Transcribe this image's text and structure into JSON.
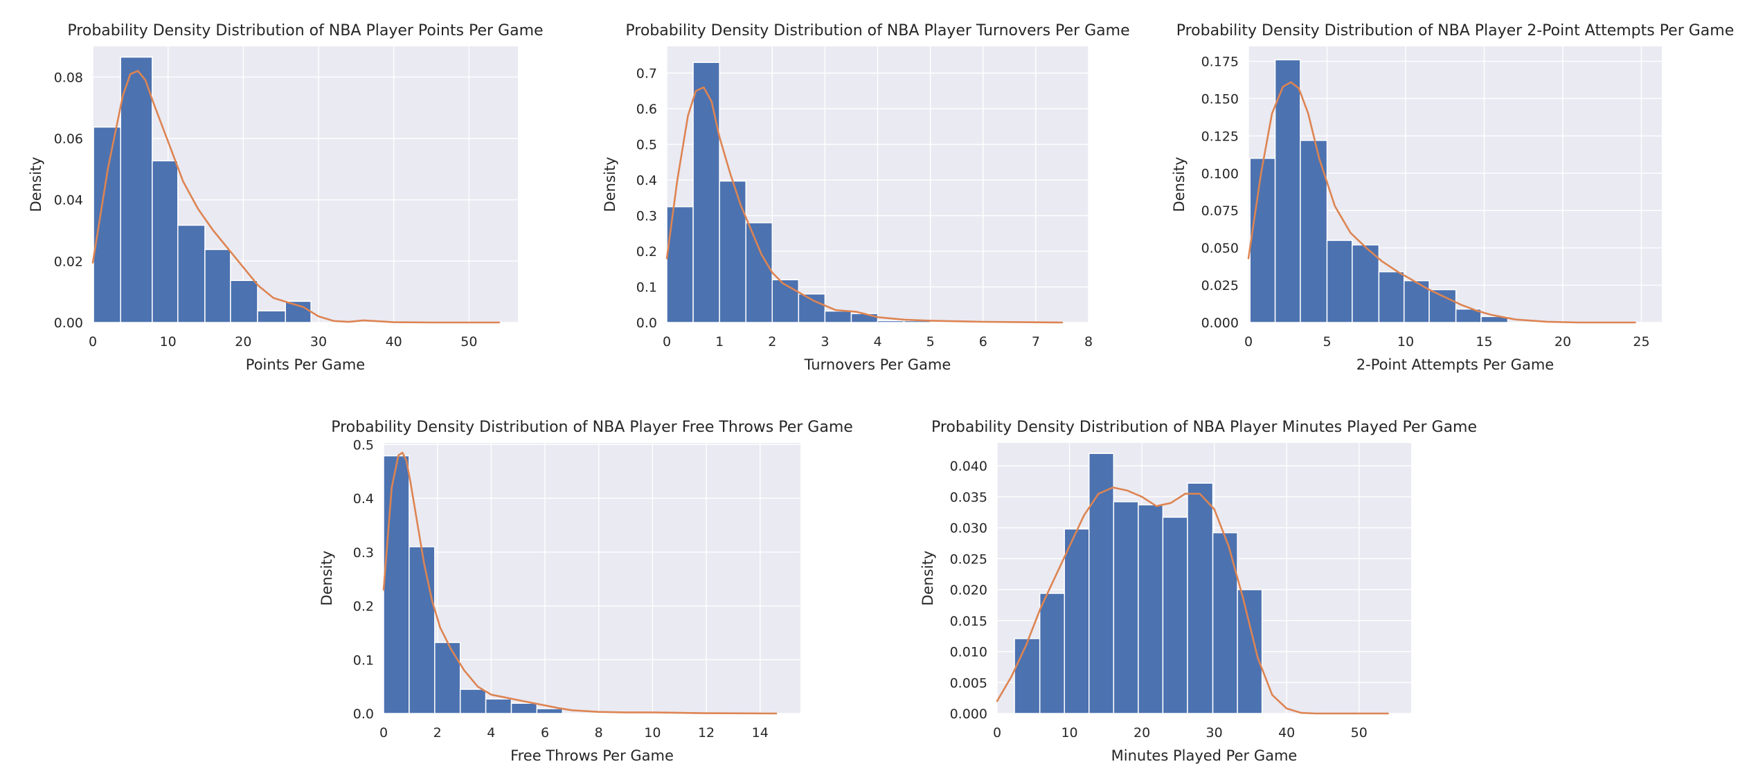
{
  "colors": {
    "background": "#eaeaf2",
    "grid": "#ffffff",
    "bar": "#4c72b0",
    "kde": "#dd8452",
    "text": "#262626"
  },
  "chart_data": [
    {
      "type": "bar",
      "title": "Probability Density Distribution of NBA Player Points Per Game",
      "xlabel": "Points Per Game",
      "ylabel": "Density",
      "xlim": [
        0,
        56.5
      ],
      "ylim": [
        0,
        0.09
      ],
      "xticks": [
        0,
        10,
        20,
        30,
        40,
        50
      ],
      "xtick_labels": [
        "0",
        "10",
        "20",
        "30",
        "40",
        "50"
      ],
      "yticks": [
        0,
        0.02,
        0.04,
        0.06,
        0.08
      ],
      "ytick_labels": [
        "0.00",
        "0.02",
        "0.04",
        "0.06",
        "0.08"
      ],
      "grid": true,
      "bins": [
        {
          "x0": 0.1,
          "x1": 3.7,
          "value": 0.0637
        },
        {
          "x0": 3.7,
          "x1": 7.9,
          "value": 0.0865
        },
        {
          "x0": 7.9,
          "x1": 11.3,
          "value": 0.0527
        },
        {
          "x0": 11.3,
          "x1": 14.9,
          "value": 0.0317
        },
        {
          "x0": 14.9,
          "x1": 18.3,
          "value": 0.0238
        },
        {
          "x0": 18.3,
          "x1": 21.9,
          "value": 0.0137
        },
        {
          "x0": 21.9,
          "x1": 25.6,
          "value": 0.0038
        },
        {
          "x0": 25.6,
          "x1": 29.0,
          "value": 0.0069
        }
      ],
      "kde": {
        "x": [
          0,
          2,
          4,
          5,
          6,
          7,
          8,
          10,
          12,
          14,
          16,
          18,
          20,
          22,
          24,
          26,
          28,
          30,
          32,
          34,
          36,
          40,
          45,
          50,
          54
        ],
        "y": [
          0.0195,
          0.05,
          0.074,
          0.081,
          0.082,
          0.079,
          0.072,
          0.059,
          0.046,
          0.037,
          0.03,
          0.024,
          0.018,
          0.012,
          0.008,
          0.0065,
          0.005,
          0.002,
          0.0005,
          0.0002,
          0.0007,
          0.0001,
          0,
          0,
          0
        ]
      }
    },
    {
      "type": "bar",
      "title": "Probability Density Distribution of NBA Player Turnovers Per Game",
      "xlabel": "Turnovers Per Game",
      "ylabel": "Density",
      "xlim": [
        0,
        8.0
      ],
      "ylim": [
        0,
        0.775
      ],
      "xticks": [
        0,
        1,
        2,
        3,
        4,
        5,
        6,
        7,
        8
      ],
      "xtick_labels": [
        "0",
        "1",
        "2",
        "3",
        "4",
        "5",
        "6",
        "7",
        "8"
      ],
      "yticks": [
        0,
        0.1,
        0.2,
        0.3,
        0.4,
        0.5,
        0.6,
        0.7
      ],
      "ytick_labels": [
        "0.0",
        "0.1",
        "0.2",
        "0.3",
        "0.4",
        "0.5",
        "0.6",
        "0.7"
      ],
      "grid": true,
      "bins": [
        {
          "x0": 0,
          "x1": 0.5,
          "value": 0.325
        },
        {
          "x0": 0.5,
          "x1": 1.0,
          "value": 0.73
        },
        {
          "x0": 1.0,
          "x1": 1.5,
          "value": 0.397
        },
        {
          "x0": 1.5,
          "x1": 2.0,
          "value": 0.28
        },
        {
          "x0": 2.0,
          "x1": 2.5,
          "value": 0.12
        },
        {
          "x0": 2.5,
          "x1": 3.0,
          "value": 0.08
        },
        {
          "x0": 3.0,
          "x1": 3.5,
          "value": 0.032
        },
        {
          "x0": 3.5,
          "x1": 4.0,
          "value": 0.025
        },
        {
          "x0": 4.0,
          "x1": 4.5,
          "value": 0.005
        },
        {
          "x0": 4.5,
          "x1": 5.0,
          "value": 0.005
        }
      ],
      "kde": {
        "x": [
          0,
          0.2,
          0.4,
          0.55,
          0.7,
          0.85,
          1.0,
          1.2,
          1.4,
          1.6,
          1.8,
          2.0,
          2.2,
          2.5,
          2.8,
          3.2,
          3.6,
          4.0,
          4.5,
          5.0,
          6.0,
          7.0,
          7.5
        ],
        "y": [
          0.18,
          0.4,
          0.58,
          0.65,
          0.66,
          0.62,
          0.52,
          0.42,
          0.33,
          0.26,
          0.19,
          0.14,
          0.11,
          0.085,
          0.06,
          0.035,
          0.03,
          0.015,
          0.008,
          0.005,
          0.002,
          0.0005,
          0
        ]
      }
    },
    {
      "type": "bar",
      "title": "Probability Density Distribution of NBA Player 2-Point Attempts Per Game",
      "xlabel": "2-Point Attempts Per Game",
      "ylabel": "Density",
      "xlim": [
        0,
        26.3
      ],
      "ylim": [
        0,
        0.185
      ],
      "xticks": [
        0,
        5,
        10,
        15,
        20,
        25
      ],
      "xtick_labels": [
        "0",
        "5",
        "10",
        "15",
        "20",
        "25"
      ],
      "yticks": [
        0,
        0.025,
        0.05,
        0.075,
        0.1,
        0.125,
        0.15,
        0.175
      ],
      "ytick_labels": [
        "0.000",
        "0.025",
        "0.050",
        "0.075",
        "0.100",
        "0.125",
        "0.150",
        "0.175"
      ],
      "grid": true,
      "bins": [
        {
          "x0": 0.1,
          "x1": 1.7,
          "value": 0.11
        },
        {
          "x0": 1.7,
          "x1": 3.3,
          "value": 0.176
        },
        {
          "x0": 3.3,
          "x1": 5.0,
          "value": 0.122
        },
        {
          "x0": 5.0,
          "x1": 6.6,
          "value": 0.055
        },
        {
          "x0": 6.6,
          "x1": 8.3,
          "value": 0.052
        },
        {
          "x0": 8.3,
          "x1": 9.9,
          "value": 0.034
        },
        {
          "x0": 9.9,
          "x1": 11.5,
          "value": 0.028
        },
        {
          "x0": 11.5,
          "x1": 13.2,
          "value": 0.022
        },
        {
          "x0": 13.2,
          "x1": 14.8,
          "value": 0.009
        },
        {
          "x0": 14.8,
          "x1": 16.5,
          "value": 0.004
        }
      ],
      "kde": {
        "x": [
          0,
          0.8,
          1.5,
          2.2,
          2.7,
          3.2,
          3.8,
          4.5,
          5.5,
          6.5,
          7.5,
          8.5,
          9.5,
          10.5,
          11.5,
          12.5,
          13.5,
          14.5,
          15.5,
          17,
          19,
          21,
          24.6
        ],
        "y": [
          0.043,
          0.1,
          0.14,
          0.158,
          0.161,
          0.157,
          0.14,
          0.11,
          0.078,
          0.06,
          0.05,
          0.041,
          0.034,
          0.028,
          0.022,
          0.017,
          0.012,
          0.008,
          0.005,
          0.002,
          0.0005,
          0,
          0
        ]
      }
    },
    {
      "type": "bar",
      "title": "Probability Density Distribution of NBA Player Free Throws Per Game",
      "xlabel": "Free Throws Per Game",
      "ylabel": "Density",
      "xlim": [
        0,
        15.5
      ],
      "ylim": [
        0,
        0.503
      ],
      "xticks": [
        0,
        2,
        4,
        6,
        8,
        10,
        12,
        14
      ],
      "xtick_labels": [
        "0",
        "2",
        "4",
        "6",
        "8",
        "10",
        "12",
        "14"
      ],
      "yticks": [
        0,
        0.1,
        0.2,
        0.3,
        0.4,
        0.5
      ],
      "ytick_labels": [
        "0.0",
        "0.1",
        "0.2",
        "0.3",
        "0.4",
        "0.5"
      ],
      "grid": true,
      "bins": [
        {
          "x0": 0,
          "x1": 0.95,
          "value": 0.479
        },
        {
          "x0": 0.95,
          "x1": 1.9,
          "value": 0.31
        },
        {
          "x0": 1.9,
          "x1": 2.85,
          "value": 0.132
        },
        {
          "x0": 2.85,
          "x1": 3.8,
          "value": 0.045
        },
        {
          "x0": 3.8,
          "x1": 4.75,
          "value": 0.027
        },
        {
          "x0": 4.75,
          "x1": 5.7,
          "value": 0.019
        },
        {
          "x0": 5.7,
          "x1": 6.65,
          "value": 0.009
        }
      ],
      "kde": {
        "x": [
          0,
          0.3,
          0.55,
          0.7,
          0.85,
          1.0,
          1.2,
          1.5,
          1.8,
          2.1,
          2.5,
          3.0,
          3.5,
          4.0,
          4.5,
          5.0,
          5.5,
          6.0,
          6.5,
          7.0,
          8.0,
          9.0,
          10.0,
          12.0,
          14.6
        ],
        "y": [
          0.23,
          0.42,
          0.48,
          0.485,
          0.47,
          0.43,
          0.37,
          0.28,
          0.21,
          0.16,
          0.12,
          0.08,
          0.05,
          0.035,
          0.03,
          0.025,
          0.02,
          0.015,
          0.01,
          0.006,
          0.003,
          0.002,
          0.002,
          0.0005,
          0
        ]
      }
    },
    {
      "type": "bar",
      "title": "Probability Density Distribution of NBA Player Minutes Played Per Game",
      "xlabel": "Minutes Played Per Game",
      "ylabel": "Density",
      "xlim": [
        0,
        57.2
      ],
      "ylim": [
        0,
        0.0437
      ],
      "xticks": [
        0,
        10,
        20,
        30,
        40,
        50
      ],
      "xtick_labels": [
        "0",
        "10",
        "20",
        "30",
        "40",
        "50"
      ],
      "yticks": [
        0,
        0.005,
        0.01,
        0.015,
        0.02,
        0.025,
        0.03,
        0.035,
        0.04
      ],
      "ytick_labels": [
        "0.000",
        "0.005",
        "0.010",
        "0.015",
        "0.020",
        "0.025",
        "0.030",
        "0.035",
        "0.040"
      ],
      "grid": true,
      "bins": [
        {
          "x0": 2.4,
          "x1": 5.9,
          "value": 0.0121
        },
        {
          "x0": 5.9,
          "x1": 9.3,
          "value": 0.0194
        },
        {
          "x0": 9.3,
          "x1": 12.7,
          "value": 0.0298
        },
        {
          "x0": 12.7,
          "x1": 16.1,
          "value": 0.042
        },
        {
          "x0": 16.1,
          "x1": 19.5,
          "value": 0.0342
        },
        {
          "x0": 19.5,
          "x1": 22.9,
          "value": 0.0337
        },
        {
          "x0": 22.9,
          "x1": 26.3,
          "value": 0.0317
        },
        {
          "x0": 26.3,
          "x1": 29.8,
          "value": 0.0372
        },
        {
          "x0": 29.8,
          "x1": 33.2,
          "value": 0.0292
        },
        {
          "x0": 33.2,
          "x1": 36.6,
          "value": 0.02
        }
      ],
      "kde": {
        "x": [
          0,
          2,
          4,
          6,
          8,
          10,
          12,
          14,
          16,
          18,
          20,
          22,
          24,
          26,
          28,
          30,
          32,
          34,
          36,
          38,
          40,
          42,
          44,
          48,
          54
        ],
        "y": [
          0.002,
          0.006,
          0.011,
          0.017,
          0.022,
          0.027,
          0.032,
          0.0355,
          0.0365,
          0.036,
          0.035,
          0.0335,
          0.034,
          0.0355,
          0.0355,
          0.033,
          0.027,
          0.0185,
          0.009,
          0.003,
          0.0008,
          0.0001,
          0,
          0,
          0
        ]
      }
    }
  ]
}
